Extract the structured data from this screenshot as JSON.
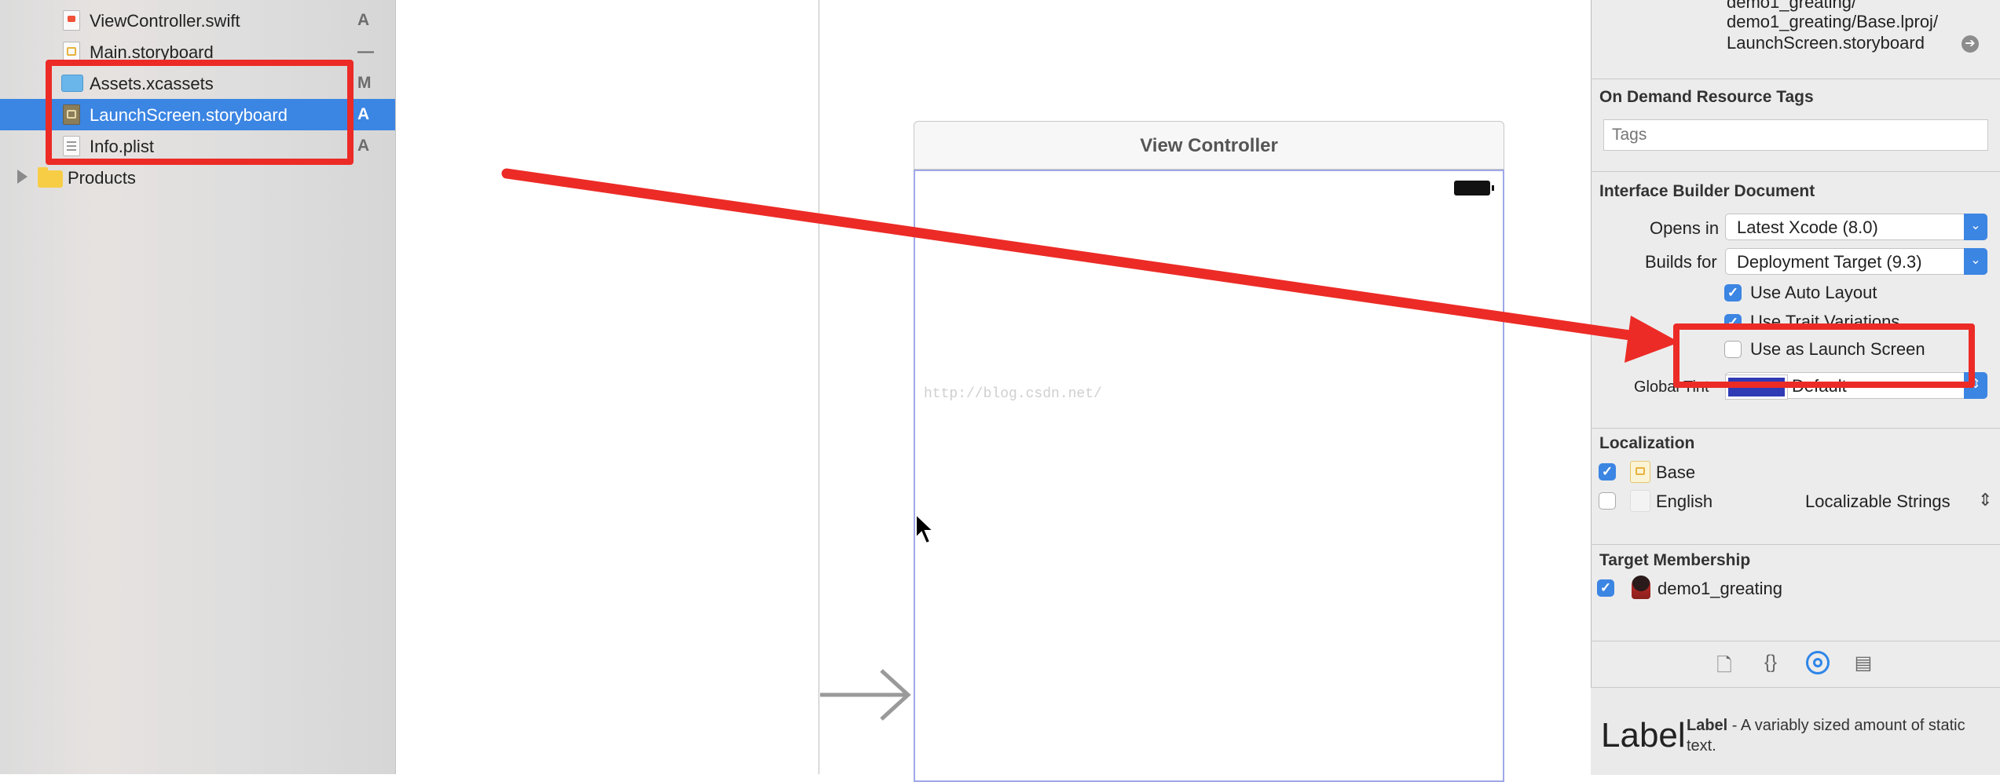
{
  "navigator": {
    "files": [
      {
        "label": "ViewController.swift",
        "badge": "A",
        "icon": "swift-file-icon"
      },
      {
        "label": "Main.storyboard",
        "badge": "—",
        "icon": "storyboard-file-icon"
      },
      {
        "label": "Assets.xcassets",
        "badge": "M",
        "icon": "asset-catalog-icon"
      },
      {
        "label": "LaunchScreen.storyboard",
        "badge": "A",
        "icon": "storyboard-file-icon",
        "selected": true
      },
      {
        "label": "Info.plist",
        "badge": "A",
        "icon": "plist-file-icon"
      }
    ],
    "products_group": "Products"
  },
  "canvas": {
    "scene_title": "View Controller",
    "watermark": "http://blog.csdn.net/"
  },
  "inspector": {
    "file_path_lines": [
      "demo1_greating/",
      "demo1_greating/Base.lproj/",
      "LaunchScreen.storyboard"
    ],
    "on_demand_tags": {
      "title": "On Demand Resource Tags",
      "placeholder": "Tags"
    },
    "ib_document": {
      "title": "Interface Builder Document",
      "opens_in_label": "Opens in",
      "opens_in_value": "Latest Xcode (8.0)",
      "builds_for_label": "Builds for",
      "builds_for_value": "Deployment Target (9.3)",
      "auto_layout_label": "Use Auto Layout",
      "auto_layout_checked": true,
      "trait_variations_label": "Use Trait Variations",
      "trait_variations_checked": true,
      "launch_screen_label": "Use as Launch Screen",
      "launch_screen_checked": false,
      "global_tint_label": "Global Tint",
      "global_tint_value": "Default",
      "global_tint_color": "#2f3ab5"
    },
    "localization": {
      "title": "Localization",
      "items": [
        {
          "label": "Base",
          "checked": true,
          "detail": ""
        },
        {
          "label": "English",
          "checked": false,
          "detail": "Localizable Strings"
        }
      ]
    },
    "target_membership": {
      "title": "Target Membership",
      "targets": [
        {
          "label": "demo1_greating",
          "checked": true
        }
      ]
    },
    "tabs": [
      "file-inspector-icon",
      "quick-help-icon",
      "identity-inspector-icon",
      "library-icon"
    ],
    "library": {
      "preview": "Label",
      "name": "Label",
      "description": " - A variably sized amount of static text."
    }
  },
  "colors": {
    "selection": "#3b85e3",
    "annotation": "#ec2b26",
    "scene_border": "#9ea8e8"
  }
}
